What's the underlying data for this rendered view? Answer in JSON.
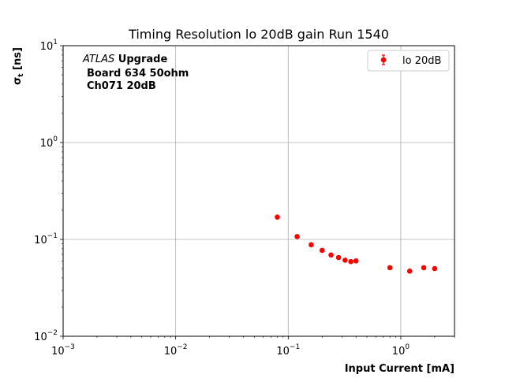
{
  "chart_data": {
    "type": "scatter",
    "title": "Timing Resolution lo 20dB gain Run 1540",
    "xlabel": "Input Current [mA]",
    "ylabel_main": "σ",
    "ylabel_sub": "t",
    "ylabel_unit": " [ns]",
    "xscale": "log",
    "yscale": "log",
    "xlim": [
      0.001,
      3
    ],
    "ylim": [
      0.01,
      10
    ],
    "grid": true,
    "x_ticks": [
      {
        "value": 0.001,
        "base": "10",
        "exp": "−3"
      },
      {
        "value": 0.01,
        "base": "10",
        "exp": "−2"
      },
      {
        "value": 0.1,
        "base": "10",
        "exp": "−1"
      },
      {
        "value": 1,
        "base": "10",
        "exp": "0"
      }
    ],
    "y_ticks": [
      {
        "value": 0.01,
        "base": "10",
        "exp": "−2"
      },
      {
        "value": 0.1,
        "base": "10",
        "exp": "−1"
      },
      {
        "value": 1,
        "base": "10",
        "exp": "0"
      },
      {
        "value": 10,
        "base": "10",
        "exp": "1"
      }
    ],
    "annotation": {
      "atlas": "ATLAS",
      "upgrade": " Upgrade",
      "line2": "Board 634 50ohm",
      "line3": "Ch071 20dB"
    },
    "legend_position": "top-right",
    "series": [
      {
        "name": "lo 20dB",
        "color": "#ff0000",
        "marker": "circle-errorbar",
        "points": [
          {
            "x": 0.08,
            "y": 0.17
          },
          {
            "x": 0.12,
            "y": 0.107
          },
          {
            "x": 0.16,
            "y": 0.088
          },
          {
            "x": 0.2,
            "y": 0.077
          },
          {
            "x": 0.24,
            "y": 0.069
          },
          {
            "x": 0.28,
            "y": 0.065
          },
          {
            "x": 0.32,
            "y": 0.061
          },
          {
            "x": 0.36,
            "y": 0.059
          },
          {
            "x": 0.4,
            "y": 0.06
          },
          {
            "x": 0.8,
            "y": 0.051
          },
          {
            "x": 1.2,
            "y": 0.047
          },
          {
            "x": 1.6,
            "y": 0.051
          },
          {
            "x": 2.0,
            "y": 0.05
          }
        ]
      }
    ]
  }
}
